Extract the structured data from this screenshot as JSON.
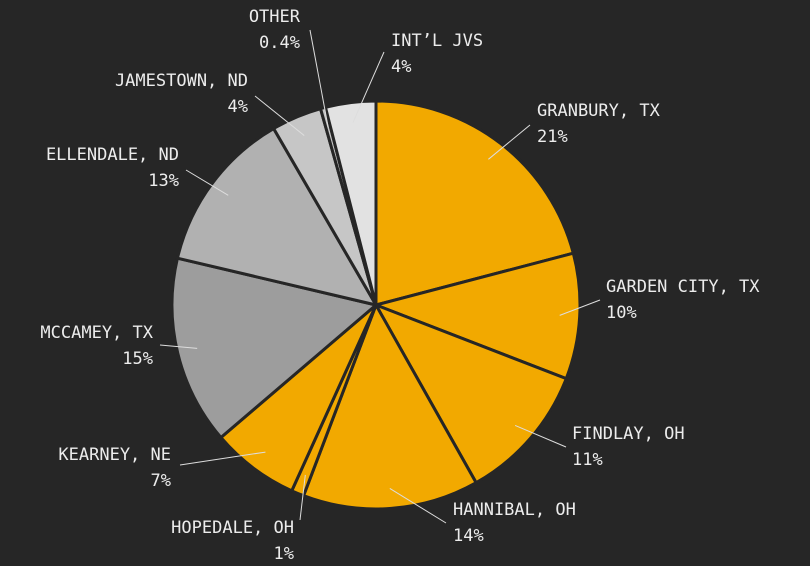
{
  "chart_data": {
    "type": "pie",
    "categories": [
      "GRANBURY, TX",
      "GARDEN CITY, TX",
      "FINDLAY, OH",
      "HANNIBAL, OH",
      "HOPEDALE, OH",
      "KEARNEY, NE",
      "MCCAMEY, TX",
      "ELLENDALE, ND",
      "JAMESTOWN, ND",
      "OTHER",
      "INT’L JVS"
    ],
    "values": [
      21,
      10,
      11,
      14,
      1,
      7,
      15,
      13,
      4,
      0.4,
      4
    ],
    "value_labels": [
      "21%",
      "10%",
      "11%",
      "14%",
      "1%",
      "7%",
      "15%",
      "13%",
      "4%",
      "0.4%",
      "4%"
    ],
    "colors": [
      "#f2a900",
      "#f2a900",
      "#f2a900",
      "#f2a900",
      "#f2a900",
      "#f2a900",
      "#9d9d9d",
      "#b1b1b1",
      "#c6c6c6",
      "#c6c6c6",
      "#e2e2e2"
    ]
  }
}
